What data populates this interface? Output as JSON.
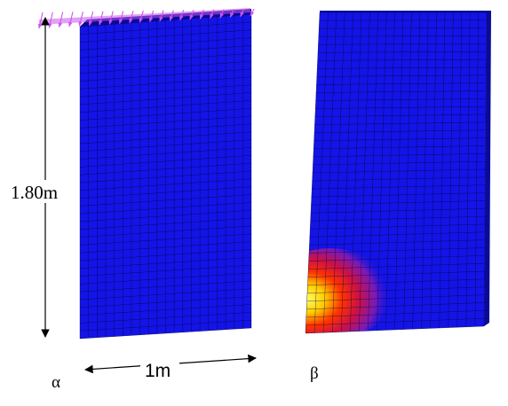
{
  "figure": {
    "height_label": "1.80m",
    "width_label": "1m",
    "panel_a_label": "α",
    "panel_b_label": "β"
  },
  "colors": {
    "mesh_fill": "#1414e6",
    "mesh_side": "#0a0a9a",
    "mesh_lines": "#000033",
    "load_arrows": "#cc55ee",
    "hotspot_core": "#ffff66",
    "hotspot_mid": "#ff3300",
    "hotspot_outer": "#b0149a"
  },
  "mesh": {
    "columns": 20,
    "rows": 40
  }
}
